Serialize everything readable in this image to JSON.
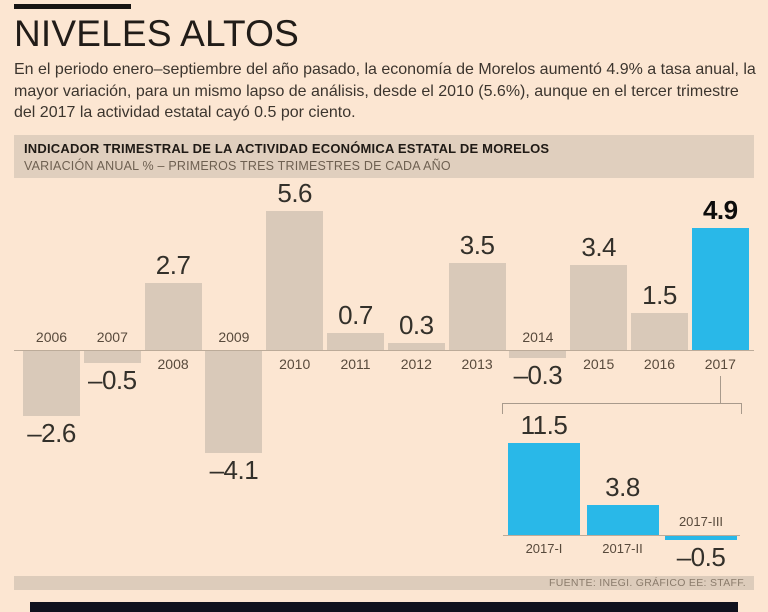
{
  "page": {
    "title": "NIVELES ALTOS",
    "intro": "En el periodo enero–septiembre del año pasado, la economía de Morelos aumentó 4.9% a tasa anual, la mayor variación, para un mismo lapso de análisis, desde el 2010 (5.6%), aunque en el tercer trimestre del 2017 la actividad estatal cayó 0.5 por ciento."
  },
  "chart_header": {
    "title": "INDICADOR TRIMESTRAL DE LA ACTIVIDAD ECONÓMICA ESTATAL DE MORELOS",
    "subtitle": "VARIACIÓN ANUAL % – PRIMEROS TRES TRIMESTRES DE CADA AÑO"
  },
  "footer": {
    "source": "FUENTE: INEGI.  GRÁFICO EE: STAFF."
  },
  "colors": {
    "background": "#fce6d2",
    "band": "#e0cfbe",
    "bar": "#d9c9b9",
    "highlight": "#29b8e8",
    "axis": "#bcab99",
    "bracket": "#a89a8c"
  },
  "chart_data": [
    {
      "type": "bar",
      "title": "INDICADOR TRIMESTRAL DE LA ACTIVIDAD ECONÓMICA ESTATAL DE MORELOS",
      "ylabel": "VARIACIÓN ANUAL %",
      "categories": [
        "2006",
        "2007",
        "2008",
        "2009",
        "2010",
        "2011",
        "2012",
        "2013",
        "2014",
        "2015",
        "2016",
        "2017"
      ],
      "values": [
        -2.6,
        -0.5,
        2.7,
        -4.1,
        5.6,
        0.7,
        0.3,
        3.5,
        -0.3,
        3.4,
        1.5,
        4.9
      ],
      "highlight_category": "2017",
      "ylim": [
        -4.5,
        6.0
      ],
      "grid": false,
      "legend": "none",
      "notes": "value labels above positive bars and below negative bars; year labels on opposite side of zero axis"
    },
    {
      "type": "bar",
      "title": "Trimestres de 2017",
      "categories": [
        "2017-I",
        "2017-II",
        "2017-III"
      ],
      "values": [
        11.5,
        3.8,
        -0.5
      ],
      "ylim": [
        -1.0,
        12.0
      ],
      "grid": false,
      "legend": "none",
      "notes": "all bars highlighted cyan; linked by bracket to the 2017 annual bar"
    }
  ]
}
